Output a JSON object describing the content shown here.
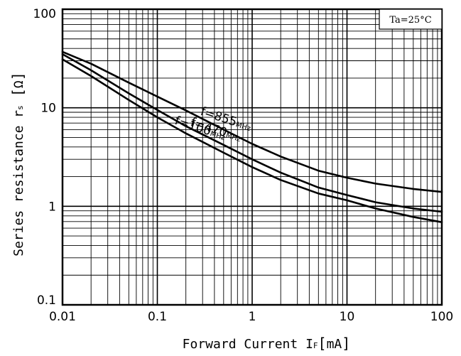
{
  "chart_data": {
    "type": "line",
    "x_scale": "log",
    "y_scale": "log",
    "xlim": [
      0.01,
      100
    ],
    "ylim": [
      0.1,
      100
    ],
    "grid": true,
    "x_ticks": [
      {
        "value": 0.01,
        "label": "0.01"
      },
      {
        "value": 0.1,
        "label": "0.1"
      },
      {
        "value": 1,
        "label": "1"
      },
      {
        "value": 10,
        "label": "10"
      },
      {
        "value": 100,
        "label": "100"
      }
    ],
    "y_ticks": [
      {
        "value": 0.1,
        "label": "0.1"
      },
      {
        "value": 1,
        "label": "1"
      },
      {
        "value": 10,
        "label": "10"
      },
      {
        "value": 100,
        "label": "100"
      }
    ],
    "xlabel": {
      "main": "Forward Current ",
      "symbol": "I",
      "sub": "F",
      "unit": "mA"
    },
    "ylabel": {
      "main": "Series resistance ",
      "symbol": "r",
      "sub": "s",
      "unit": "Ω"
    },
    "annotation": "Ta=25°C",
    "series": [
      {
        "name": "f=855",
        "unit": "MHz",
        "x": [
          0.01,
          0.02,
          0.05,
          0.1,
          0.2,
          0.5,
          1,
          2,
          5,
          10,
          20,
          50,
          100
        ],
        "y": [
          37,
          28,
          18,
          13,
          9.4,
          6.0,
          4.3,
          3.2,
          2.3,
          1.95,
          1.7,
          1.5,
          1.4
        ]
      },
      {
        "name": "f=470",
        "unit": "MHz",
        "x": [
          0.01,
          0.02,
          0.05,
          0.1,
          0.2,
          0.5,
          1,
          2,
          5,
          10,
          20,
          50,
          100
        ],
        "y": [
          35,
          24,
          14,
          9.5,
          6.5,
          4.2,
          3.0,
          2.2,
          1.55,
          1.3,
          1.1,
          0.95,
          0.88
        ]
      },
      {
        "name": "f=100",
        "unit": "MHz",
        "x": [
          0.01,
          0.02,
          0.05,
          0.1,
          0.2,
          0.5,
          1,
          2,
          5,
          10,
          20,
          50,
          100
        ],
        "y": [
          31,
          21,
          12,
          8.0,
          5.5,
          3.5,
          2.5,
          1.85,
          1.35,
          1.15,
          0.95,
          0.78,
          0.69
        ]
      }
    ]
  }
}
